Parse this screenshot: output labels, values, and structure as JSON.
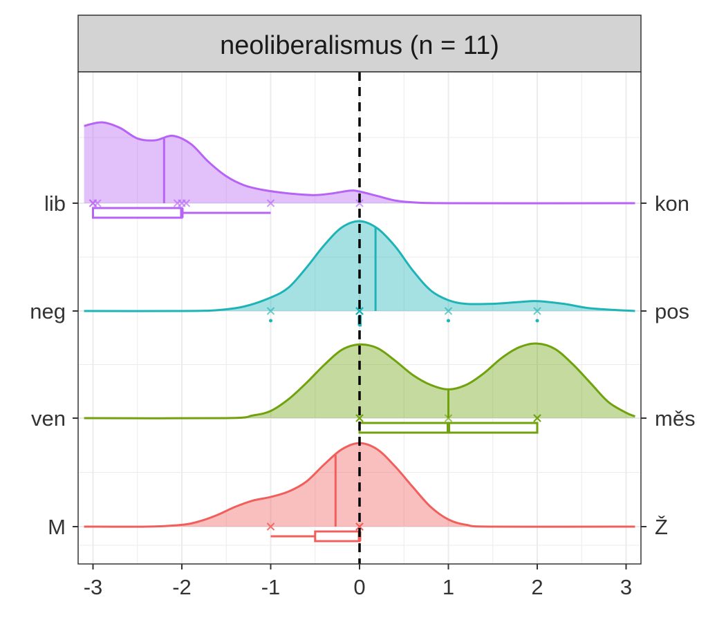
{
  "chart_data": {
    "type": "ridgeline",
    "title": "neoliberalismus (n = 11)",
    "xlabel": "",
    "ylabel": "",
    "xlim": [
      -3,
      3
    ],
    "x_ticks": [
      -3,
      -2,
      -1,
      0,
      1,
      2,
      3
    ],
    "x_tick_labels": [
      "-3",
      "-2",
      "-1",
      "0",
      "1",
      "2",
      "3"
    ],
    "reference_line_x": 0,
    "grid": true,
    "rows": [
      {
        "left_label": "lib",
        "right_label": "kon",
        "color": "#B763F5",
        "mean": -2.2,
        "points": [
          -3,
          -3,
          -2.95,
          -2.05,
          -2,
          -1.95,
          -1,
          0
        ],
        "box": {
          "q1": -3,
          "median": -2,
          "q3": -2,
          "whisker_low": -3,
          "whisker_high": -1,
          "outliers": []
        },
        "density": [
          [
            -3.1,
            0.86
          ],
          [
            -2.9,
            0.9
          ],
          [
            -2.7,
            0.84
          ],
          [
            -2.5,
            0.72
          ],
          [
            -2.3,
            0.7
          ],
          [
            -2.1,
            0.75
          ],
          [
            -1.9,
            0.66
          ],
          [
            -1.7,
            0.46
          ],
          [
            -1.5,
            0.3
          ],
          [
            -1.3,
            0.2
          ],
          [
            -1.1,
            0.15
          ],
          [
            -0.9,
            0.12
          ],
          [
            -0.7,
            0.1
          ],
          [
            -0.5,
            0.09
          ],
          [
            -0.3,
            0.11
          ],
          [
            -0.1,
            0.14
          ],
          [
            0.0,
            0.13
          ],
          [
            0.2,
            0.08
          ],
          [
            0.4,
            0.03
          ],
          [
            0.6,
            0.01
          ],
          [
            1.0,
            0.0
          ],
          [
            3.1,
            0.0
          ]
        ]
      },
      {
        "left_label": "neg",
        "right_label": "pos",
        "color": "#1EB3B6",
        "mean": 0.18,
        "points": [
          -1,
          0,
          0,
          0,
          0,
          0,
          0,
          0,
          1,
          2
        ],
        "box": {
          "q1": 0,
          "median": 0,
          "q3": 0,
          "whisker_low": 0,
          "whisker_high": 0,
          "outliers": [
            -1,
            1,
            2
          ]
        },
        "density": [
          [
            -3.1,
            0.0
          ],
          [
            -2.0,
            0.0
          ],
          [
            -1.6,
            0.01
          ],
          [
            -1.3,
            0.05
          ],
          [
            -1.0,
            0.15
          ],
          [
            -0.8,
            0.26
          ],
          [
            -0.6,
            0.48
          ],
          [
            -0.4,
            0.73
          ],
          [
            -0.2,
            0.93
          ],
          [
            0.0,
            1.0
          ],
          [
            0.2,
            0.92
          ],
          [
            0.4,
            0.72
          ],
          [
            0.6,
            0.45
          ],
          [
            0.8,
            0.23
          ],
          [
            1.0,
            0.12
          ],
          [
            1.2,
            0.08
          ],
          [
            1.5,
            0.08
          ],
          [
            1.8,
            0.1
          ],
          [
            2.0,
            0.11
          ],
          [
            2.3,
            0.08
          ],
          [
            2.6,
            0.03
          ],
          [
            3.1,
            0.0
          ]
        ]
      },
      {
        "left_label": "ven",
        "right_label": "měs",
        "color": "#6FA20C",
        "mean": 1.0,
        "points": [
          0,
          0,
          0,
          1,
          2,
          2,
          2
        ],
        "box": {
          "q1": 0,
          "median": 1,
          "q3": 2,
          "whisker_low": 0,
          "whisker_high": 2,
          "outliers": []
        },
        "density": [
          [
            -3.1,
            0.0
          ],
          [
            -1.5,
            0.0
          ],
          [
            -1.2,
            0.03
          ],
          [
            -1.0,
            0.08
          ],
          [
            -0.8,
            0.21
          ],
          [
            -0.6,
            0.39
          ],
          [
            -0.4,
            0.59
          ],
          [
            -0.2,
            0.76
          ],
          [
            0.0,
            0.82
          ],
          [
            0.2,
            0.78
          ],
          [
            0.4,
            0.64
          ],
          [
            0.6,
            0.48
          ],
          [
            0.8,
            0.37
          ],
          [
            1.0,
            0.32
          ],
          [
            1.2,
            0.37
          ],
          [
            1.4,
            0.5
          ],
          [
            1.6,
            0.67
          ],
          [
            1.8,
            0.79
          ],
          [
            2.0,
            0.83
          ],
          [
            2.2,
            0.77
          ],
          [
            2.4,
            0.6
          ],
          [
            2.6,
            0.39
          ],
          [
            2.8,
            0.18
          ],
          [
            3.0,
            0.06
          ],
          [
            3.1,
            0.02
          ]
        ]
      },
      {
        "left_label": "M",
        "right_label": "Ž",
        "color": "#F05F5C",
        "mean": -0.27,
        "points": [
          -1,
          -1,
          0,
          0,
          0,
          0
        ],
        "box": {
          "q1": -0.5,
          "median": 0,
          "q3": 0,
          "whisker_low": -1,
          "whisker_high": 0,
          "outliers": []
        },
        "density": [
          [
            -3.1,
            0.0
          ],
          [
            -2.4,
            0.0
          ],
          [
            -2.0,
            0.02
          ],
          [
            -1.8,
            0.06
          ],
          [
            -1.6,
            0.13
          ],
          [
            -1.4,
            0.22
          ],
          [
            -1.2,
            0.29
          ],
          [
            -1.0,
            0.33
          ],
          [
            -0.8,
            0.39
          ],
          [
            -0.6,
            0.5
          ],
          [
            -0.4,
            0.69
          ],
          [
            -0.2,
            0.86
          ],
          [
            0.0,
            0.93
          ],
          [
            0.2,
            0.86
          ],
          [
            0.4,
            0.67
          ],
          [
            0.6,
            0.44
          ],
          [
            0.8,
            0.22
          ],
          [
            1.0,
            0.08
          ],
          [
            1.2,
            0.02
          ],
          [
            1.5,
            0.0
          ],
          [
            3.1,
            0.0
          ]
        ]
      }
    ]
  }
}
